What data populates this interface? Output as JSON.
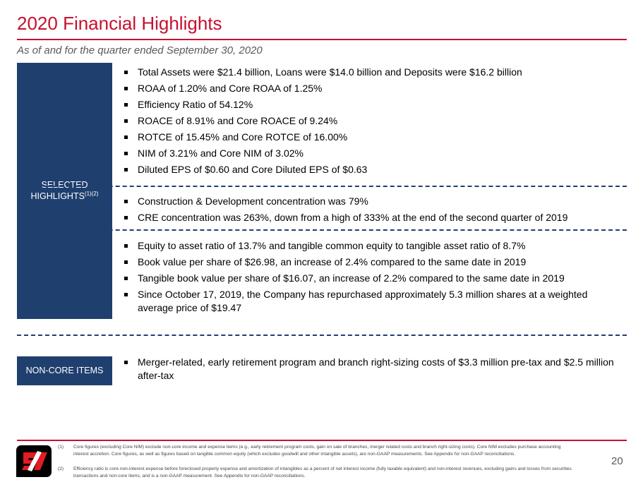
{
  "title": "2020 Financial Highlights",
  "subtitle": "As of and for the quarter ended September 30, 2020",
  "selected": {
    "label": "SELECTED",
    "label2": "HIGHLIGHTS",
    "sup": "(1)(2)"
  },
  "group1": [
    "Total Assets were $21.4 billion, Loans were $14.0 billion and Deposits were $16.2 billion",
    "ROAA of 1.20% and Core ROAA of 1.25%",
    "Efficiency Ratio of 54.12%",
    "ROACE of 8.91% and Core ROACE of 9.24%",
    "ROTCE of 15.45% and Core ROTCE of 16.00%",
    "NIM of 3.21% and Core NIM of 3.02%",
    "Diluted EPS of $0.60 and Core Diluted EPS of $0.63"
  ],
  "group2": [
    "Construction & Development concentration was 79%",
    "CRE concentration was 263%, down from a high of 333% at the end of the second quarter of 2019"
  ],
  "group3": [
    "Equity to asset ratio of 13.7% and tangible common equity to tangible asset ratio of 8.7%",
    "Book value per share of $26.98, an increase of 2.4% compared to the same date in 2019",
    "Tangible book value per share of $16.07, an increase of 2.2% compared to the same date in 2019",
    "Since October 17, 2019, the Company has repurchased approximately 5.3 million shares at a weighted average price of $19.47"
  ],
  "noncore": {
    "label": "NON-CORE ITEMS",
    "items": [
      "Merger-related, early retirement program and branch right-sizing costs of $3.3 million pre-tax and $2.5 million after-tax"
    ]
  },
  "footnotes": [
    {
      "num": "(1)",
      "text": "Core figures (excluding Core NIM) exclude non-core income and expense items (e.g., early retirement program costs, gain on sale of branches, merger related costs and branch right-sizing costs).  Core NIM excludes purchase accounting interest accretion. Core figures, as well as figures based on tangible common equity (which excludes goodwill and other intangible assets), are non-GAAP measurements. See Appendix for non-GAAP reconciliations."
    },
    {
      "num": "(2)",
      "text": "Efficiency ratio is core non-interest expense before foreclosed property expense and amortization of intangibles as a percent of net interest income (fully taxable equivalent) and non-interest revenues, excluding gains and losses from securities  transactions and non-core items, and is a non-GAAP measurement. See Appendix for non-GAAP reconciliations."
    }
  ],
  "page_number": "20",
  "logo_text": "SF",
  "colors": {
    "accent": "#c8102e",
    "navy": "#1f3f6e"
  }
}
